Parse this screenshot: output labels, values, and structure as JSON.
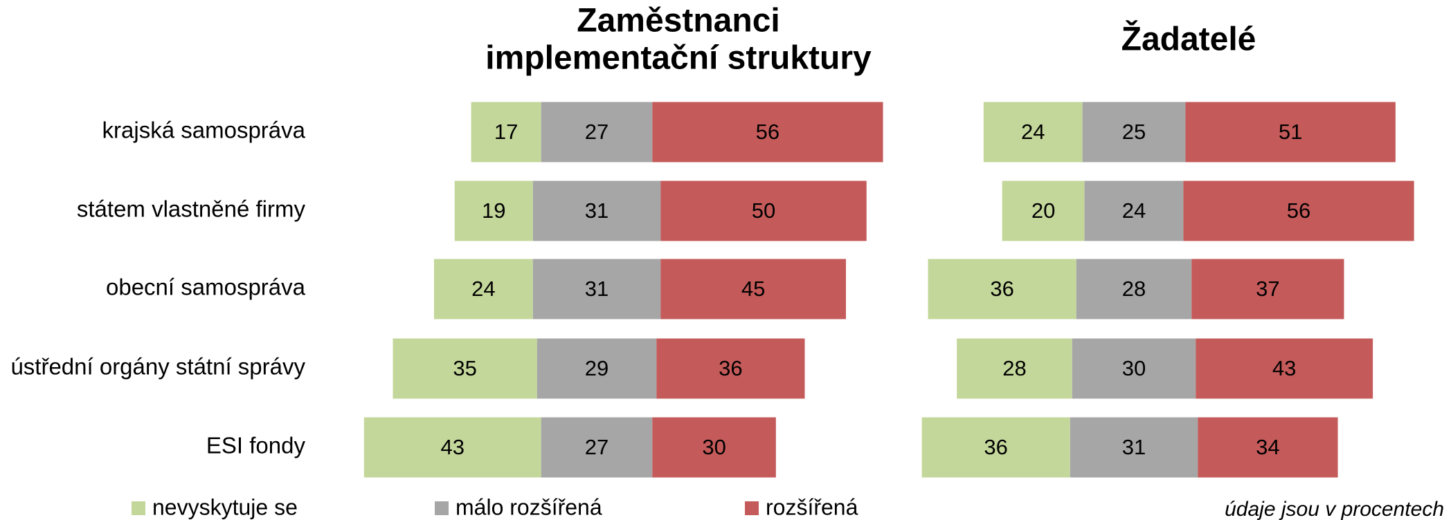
{
  "chart_data": {
    "type": "diverging-bar",
    "categories": [
      "krajská samospráva",
      "státem vlastněné firmy",
      "obecní samospráva",
      "ústřední orgány státní správy",
      "ESI fondy"
    ],
    "series": [
      {
        "name": "nevyskytuje se",
        "color": "#c4d79b"
      },
      {
        "name": "málo rozšířená",
        "color": "#a6a6a6"
      },
      {
        "name": "rozšířená",
        "color": "#c55a5a"
      }
    ],
    "panels": [
      {
        "title": [
          "Zaměstnanci",
          "implementační struktury"
        ],
        "series": [
          {
            "values": [
              17,
              19,
              24,
              35,
              43
            ]
          },
          {
            "values": [
              27,
              31,
              31,
              29,
              27
            ]
          },
          {
            "values": [
              56,
              50,
              45,
              36,
              30
            ]
          }
        ]
      },
      {
        "title": [
          "Žadatelé"
        ],
        "series": [
          {
            "values": [
              24,
              20,
              36,
              28,
              36
            ]
          },
          {
            "values": [
              25,
              24,
              28,
              30,
              31
            ]
          },
          {
            "values": [
              51,
              56,
              37,
              43,
              34
            ]
          }
        ]
      }
    ],
    "note": "údaje jsou v procentech"
  }
}
